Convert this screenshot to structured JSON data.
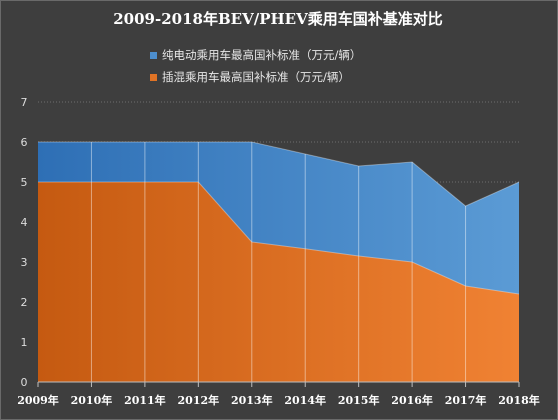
{
  "chart_data": {
    "type": "area",
    "title": "2009-2018年BEV/PHEV乘用车国补基准对比",
    "xlabel": "",
    "ylabel": "",
    "categories": [
      "2009年",
      "2010年",
      "2011年",
      "2012年",
      "2013年",
      "2014年",
      "2015年",
      "2016年",
      "2017年",
      "2018年"
    ],
    "ylim": [
      0,
      7
    ],
    "yticks": [
      0,
      1,
      2,
      3,
      4,
      5,
      6,
      7
    ],
    "grid": true,
    "legend_position": "top-left",
    "series": [
      {
        "name": "纯电动乘用车最高国补标准（万元/辆）",
        "values": [
          6,
          6,
          6,
          6,
          6,
          5.7,
          5.4,
          5.5,
          4.4,
          5.0
        ],
        "color_dark": "#2e6fb5",
        "color_light": "#5b9bd5",
        "legend_color": "#4d8fcf"
      },
      {
        "name": "插混乘用车最高国补标准（万元/辆）",
        "values": [
          5,
          5,
          5,
          5,
          3.5,
          3.33,
          3.15,
          3.0,
          2.4,
          2.2
        ],
        "color_dark": "#c55a11",
        "color_light": "#f08233",
        "legend_color": "#e07325"
      }
    ]
  }
}
